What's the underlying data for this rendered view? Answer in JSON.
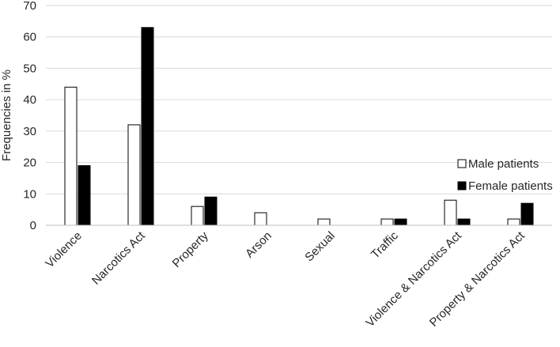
{
  "chart_data": {
    "type": "bar",
    "ylabel": "Frequencies in %",
    "ylim": [
      0,
      70
    ],
    "yticks": [
      0,
      10,
      20,
      30,
      40,
      50,
      60,
      70
    ],
    "grid": true,
    "legend_position": "right",
    "categories": [
      "Violence",
      "Narcotics Act",
      "Property",
      "Arson",
      "Sexual",
      "Traffic",
      "Violence & Narcotics Act",
      "Property & Narcotics Act"
    ],
    "series": [
      {
        "name": "Male patients",
        "color": "#ffffff",
        "stroke": "#000000",
        "values": [
          44,
          32,
          6,
          4,
          2,
          2,
          8,
          2
        ]
      },
      {
        "name": "Female patients",
        "color": "#000000",
        "stroke": "#000000",
        "values": [
          19,
          63,
          9,
          0,
          0,
          2,
          2,
          7
        ]
      }
    ]
  }
}
